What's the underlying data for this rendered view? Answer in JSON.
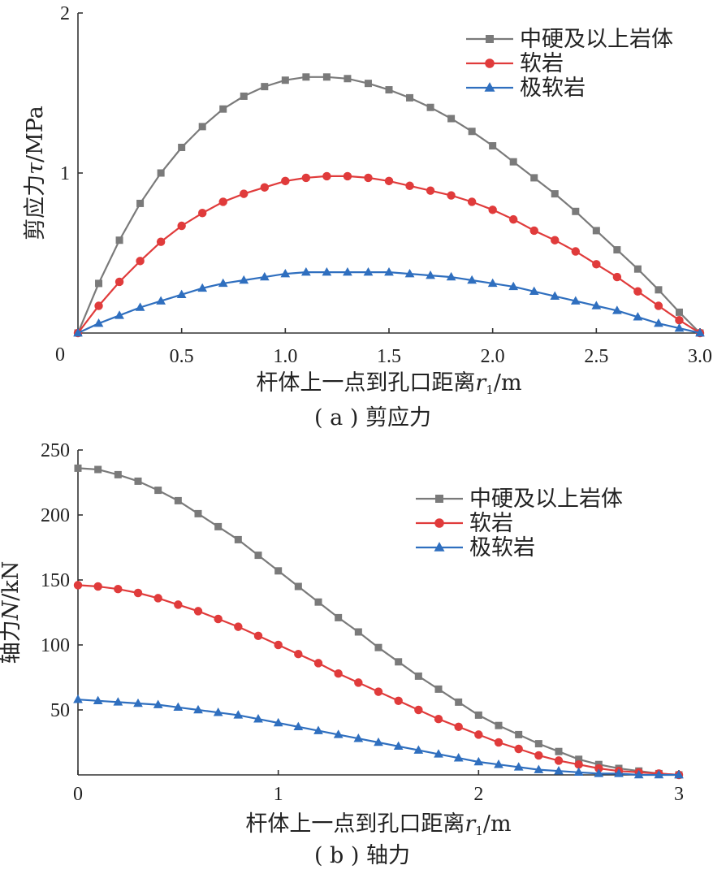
{
  "chart_data": [
    {
      "type": "line",
      "caption": "( a ) 剪应力",
      "xlabel": "杆体上一点到孔口距离",
      "xlabel_var": "r",
      "xlabel_sub": "1",
      "xlabel_unit": "/m",
      "ylabel": "剪应力",
      "ylabel_var": "τ",
      "ylabel_unit": "/MPa",
      "xlim": [
        0,
        3.0
      ],
      "ylim": [
        0,
        2
      ],
      "xticks": [
        "0",
        "0.5",
        "1.0",
        "1.5",
        "2.0",
        "2.5",
        "3.0"
      ],
      "xtick_values": [
        0,
        0.5,
        1.0,
        1.5,
        2.0,
        2.5,
        3.0
      ],
      "yticks": [
        "1",
        "2"
      ],
      "ytick_values": [
        1,
        2
      ],
      "y_zero_label": "0",
      "legend_position": "top-right",
      "series": [
        {
          "name": "中硬及以上岩体",
          "color": "#7a7a7a",
          "marker": "square",
          "x": [
            0,
            0.1,
            0.2,
            0.3,
            0.4,
            0.5,
            0.6,
            0.7,
            0.8,
            0.9,
            1.0,
            1.1,
            1.2,
            1.3,
            1.4,
            1.5,
            1.6,
            1.7,
            1.8,
            1.9,
            2.0,
            2.1,
            2.2,
            2.3,
            2.4,
            2.5,
            2.6,
            2.7,
            2.8,
            2.9,
            3.0
          ],
          "values": [
            0,
            0.31,
            0.58,
            0.81,
            1.0,
            1.16,
            1.29,
            1.4,
            1.48,
            1.54,
            1.58,
            1.6,
            1.6,
            1.59,
            1.56,
            1.52,
            1.47,
            1.41,
            1.34,
            1.26,
            1.17,
            1.07,
            0.97,
            0.87,
            0.76,
            0.64,
            0.52,
            0.4,
            0.27,
            0.13,
            0
          ]
        },
        {
          "name": "软岩",
          "color": "#e03b3b",
          "marker": "circle",
          "x": [
            0,
            0.1,
            0.2,
            0.3,
            0.4,
            0.5,
            0.6,
            0.7,
            0.8,
            0.9,
            1.0,
            1.1,
            1.2,
            1.3,
            1.4,
            1.5,
            1.6,
            1.7,
            1.8,
            1.9,
            2.0,
            2.1,
            2.2,
            2.3,
            2.4,
            2.5,
            2.6,
            2.7,
            2.8,
            2.9,
            3.0
          ],
          "values": [
            0,
            0.17,
            0.32,
            0.45,
            0.57,
            0.67,
            0.75,
            0.82,
            0.87,
            0.91,
            0.95,
            0.97,
            0.98,
            0.98,
            0.97,
            0.95,
            0.92,
            0.89,
            0.86,
            0.82,
            0.77,
            0.71,
            0.64,
            0.58,
            0.51,
            0.43,
            0.35,
            0.26,
            0.17,
            0.08,
            0
          ]
        },
        {
          "name": "极软岩",
          "color": "#2f6fbf",
          "marker": "triangle",
          "x": [
            0,
            0.1,
            0.2,
            0.3,
            0.4,
            0.5,
            0.6,
            0.7,
            0.8,
            0.9,
            1.0,
            1.1,
            1.2,
            1.3,
            1.4,
            1.5,
            1.6,
            1.7,
            1.8,
            1.9,
            2.0,
            2.1,
            2.2,
            2.3,
            2.4,
            2.5,
            2.6,
            2.7,
            2.8,
            2.9,
            3.0
          ],
          "values": [
            0,
            0.06,
            0.11,
            0.16,
            0.2,
            0.24,
            0.28,
            0.31,
            0.33,
            0.35,
            0.37,
            0.38,
            0.38,
            0.38,
            0.38,
            0.38,
            0.37,
            0.36,
            0.35,
            0.33,
            0.31,
            0.29,
            0.26,
            0.23,
            0.2,
            0.17,
            0.14,
            0.1,
            0.06,
            0.03,
            0
          ]
        }
      ]
    },
    {
      "type": "line",
      "caption": "( b ) 轴力",
      "xlabel": "杆体上一点到孔口距离",
      "xlabel_var": "r",
      "xlabel_sub": "1",
      "xlabel_unit": "/m",
      "ylabel": "轴力",
      "ylabel_var": "N",
      "ylabel_unit": "/kN",
      "xlim": [
        0,
        3
      ],
      "ylim": [
        0,
        250
      ],
      "xticks": [
        "0",
        "1",
        "2",
        "3"
      ],
      "xtick_values": [
        0,
        1,
        2,
        3
      ],
      "yticks": [
        "50",
        "100",
        "150",
        "200",
        "250"
      ],
      "ytick_values": [
        50,
        100,
        150,
        200,
        250
      ],
      "legend_position": "top-right",
      "series": [
        {
          "name": "中硬及以上岩体",
          "color": "#7a7a7a",
          "marker": "square",
          "x": [
            0,
            0.1,
            0.2,
            0.3,
            0.4,
            0.5,
            0.6,
            0.7,
            0.8,
            0.9,
            1.0,
            1.1,
            1.2,
            1.3,
            1.4,
            1.5,
            1.6,
            1.7,
            1.8,
            1.9,
            2.0,
            2.1,
            2.2,
            2.3,
            2.4,
            2.5,
            2.6,
            2.7,
            2.8,
            2.9,
            3.0
          ],
          "values": [
            236,
            235,
            231,
            226,
            219,
            211,
            201,
            191,
            181,
            169,
            157,
            145,
            133,
            121,
            110,
            98,
            87,
            76,
            66,
            56,
            46,
            38,
            31,
            24,
            18,
            12,
            8,
            5,
            3,
            1,
            0
          ]
        },
        {
          "name": "软岩",
          "color": "#e03b3b",
          "marker": "circle",
          "x": [
            0,
            0.1,
            0.2,
            0.3,
            0.4,
            0.5,
            0.6,
            0.7,
            0.8,
            0.9,
            1.0,
            1.1,
            1.2,
            1.3,
            1.4,
            1.5,
            1.6,
            1.7,
            1.8,
            1.9,
            2.0,
            2.1,
            2.2,
            2.3,
            2.4,
            2.5,
            2.6,
            2.7,
            2.8,
            2.9,
            3.0
          ],
          "values": [
            146,
            145,
            143,
            140,
            136,
            131,
            126,
            120,
            114,
            107,
            100,
            93,
            86,
            78,
            71,
            64,
            57,
            50,
            43,
            37,
            31,
            25,
            20,
            15,
            11,
            8,
            5,
            3,
            2,
            1,
            0
          ]
        },
        {
          "name": "极软岩",
          "color": "#2f6fbf",
          "marker": "triangle",
          "x": [
            0,
            0.1,
            0.2,
            0.3,
            0.4,
            0.5,
            0.6,
            0.7,
            0.8,
            0.9,
            1.0,
            1.1,
            1.2,
            1.3,
            1.4,
            1.5,
            1.6,
            1.7,
            1.8,
            1.9,
            2.0,
            2.1,
            2.2,
            2.3,
            2.4,
            2.5,
            2.6,
            2.7,
            2.8,
            2.9,
            3.0
          ],
          "values": [
            58,
            57,
            56,
            55,
            54,
            52,
            50,
            48,
            46,
            43,
            40,
            37,
            34,
            31,
            28,
            25,
            22,
            19,
            16,
            13,
            10,
            8,
            6,
            4,
            3,
            2,
            1,
            1,
            0,
            0,
            0
          ]
        }
      ]
    }
  ]
}
